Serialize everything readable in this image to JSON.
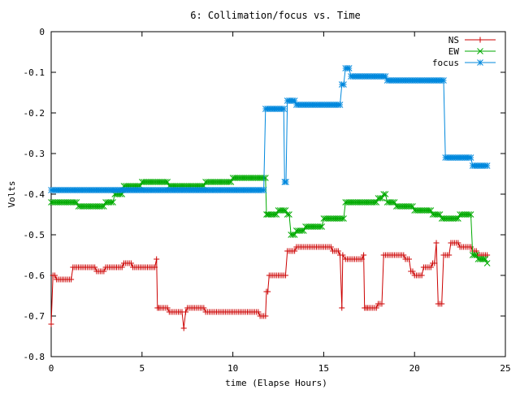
{
  "chart_data": {
    "type": "line",
    "title": "6: Collimation/focus vs. Time",
    "xlabel": "time (Elapse Hours)",
    "ylabel": "Volts",
    "xlim": [
      0,
      25
    ],
    "ylim": [
      -0.8,
      0
    ],
    "xticks": [
      0,
      5,
      10,
      15,
      20,
      25
    ],
    "xtick_labels": [
      "0",
      "5",
      "10",
      "15",
      "20",
      "25"
    ],
    "yticks": [
      0,
      -0.1,
      -0.2,
      -0.3,
      -0.4,
      -0.5,
      -0.6,
      -0.7,
      -0.8
    ],
    "ytick_labels": [
      "0",
      "-0.1",
      "-0.2",
      "-0.3",
      "-0.4",
      "-0.5",
      "-0.6",
      "-0.7",
      "-0.8"
    ],
    "grid": false,
    "legend_position": "top-right",
    "series": [
      {
        "name": "NS",
        "color": "#cc0000",
        "marker": "plus",
        "x": [
          0,
          0.1,
          0.3,
          0.6,
          1.1,
          1.2,
          1.5,
          2.0,
          2.5,
          3.0,
          3.5,
          4.0,
          4.5,
          5.0,
          5.5,
          5.8,
          5.85,
          6.0,
          6.5,
          7.0,
          7.3,
          7.4,
          7.5,
          8.0,
          8.5,
          9.0,
          10.0,
          11.0,
          11.5,
          11.8,
          11.85,
          12.0,
          12.5,
          12.8,
          13.0,
          13.5,
          14.0,
          14.5,
          15.0,
          15.5,
          15.9,
          16.0,
          16.05,
          16.2,
          16.5,
          17.0,
          17.2,
          17.25,
          17.5,
          18.0,
          18.2,
          18.3,
          18.5,
          19.0,
          19.5,
          19.8,
          20.0,
          20.5,
          21.0,
          21.2,
          21.3,
          21.5,
          21.6,
          22.0,
          22.5,
          23.0,
          23.2,
          23.5,
          24.0
        ],
        "y": [
          -0.72,
          -0.6,
          -0.61,
          -0.61,
          -0.61,
          -0.58,
          -0.58,
          -0.58,
          -0.59,
          -0.58,
          -0.58,
          -0.57,
          -0.58,
          -0.58,
          -0.58,
          -0.56,
          -0.68,
          -0.68,
          -0.69,
          -0.69,
          -0.73,
          -0.69,
          -0.68,
          -0.68,
          -0.69,
          -0.69,
          -0.69,
          -0.69,
          -0.7,
          -0.7,
          -0.64,
          -0.6,
          -0.6,
          -0.6,
          -0.54,
          -0.53,
          -0.53,
          -0.53,
          -0.53,
          -0.54,
          -0.55,
          -0.68,
          -0.55,
          -0.56,
          -0.56,
          -0.56,
          -0.55,
          -0.68,
          -0.68,
          -0.67,
          -0.67,
          -0.55,
          -0.55,
          -0.55,
          -0.56,
          -0.59,
          -0.6,
          -0.58,
          -0.57,
          -0.52,
          -0.67,
          -0.67,
          -0.55,
          -0.52,
          -0.53,
          -0.53,
          -0.54,
          -0.55,
          -0.55
        ]
      },
      {
        "name": "EW",
        "color": "#00aa00",
        "marker": "cross",
        "x": [
          0,
          0.5,
          1.0,
          1.5,
          2.0,
          2.5,
          3.0,
          3.5,
          4.0,
          4.5,
          5.0,
          5.5,
          6.0,
          6.5,
          7.0,
          7.5,
          8.0,
          8.5,
          9.0,
          9.5,
          10.0,
          10.5,
          11.0,
          11.5,
          11.8,
          11.85,
          12.0,
          12.5,
          13.0,
          13.2,
          13.5,
          14.0,
          14.5,
          15.0,
          15.5,
          16.0,
          16.2,
          16.5,
          17.0,
          17.5,
          18.0,
          18.3,
          18.5,
          19.0,
          19.5,
          20.0,
          20.5,
          21.0,
          21.5,
          22.0,
          22.5,
          23.0,
          23.2,
          23.5,
          24.0
        ],
        "y": [
          -0.42,
          -0.42,
          -0.42,
          -0.43,
          -0.43,
          -0.43,
          -0.42,
          -0.4,
          -0.38,
          -0.38,
          -0.37,
          -0.37,
          -0.37,
          -0.38,
          -0.38,
          -0.38,
          -0.38,
          -0.37,
          -0.37,
          -0.37,
          -0.36,
          -0.36,
          -0.36,
          -0.36,
          -0.36,
          -0.45,
          -0.45,
          -0.44,
          -0.45,
          -0.5,
          -0.49,
          -0.48,
          -0.48,
          -0.46,
          -0.46,
          -0.46,
          -0.42,
          -0.42,
          -0.42,
          -0.42,
          -0.41,
          -0.4,
          -0.42,
          -0.43,
          -0.43,
          -0.44,
          -0.44,
          -0.45,
          -0.46,
          -0.46,
          -0.45,
          -0.45,
          -0.55,
          -0.56,
          -0.57
        ]
      },
      {
        "name": "focus",
        "color": "#0088dd",
        "marker": "star",
        "x": [
          0,
          1.0,
          2.0,
          3.0,
          4.0,
          5.0,
          6.0,
          7.0,
          8.0,
          9.0,
          10.0,
          11.0,
          11.7,
          11.8,
          12.0,
          12.5,
          12.8,
          12.85,
          13.0,
          13.5,
          14.0,
          14.5,
          15.0,
          15.5,
          15.9,
          16.0,
          16.2,
          16.5,
          17.0,
          17.5,
          18.0,
          18.5,
          19.0,
          19.5,
          20.0,
          20.5,
          21.0,
          21.5,
          21.6,
          21.7,
          22.0,
          22.5,
          23.0,
          23.2,
          23.5,
          24.0
        ],
        "y": [
          -0.39,
          -0.39,
          -0.39,
          -0.39,
          -0.39,
          -0.39,
          -0.39,
          -0.39,
          -0.39,
          -0.39,
          -0.39,
          -0.39,
          -0.39,
          -0.19,
          -0.19,
          -0.19,
          -0.19,
          -0.37,
          -0.17,
          -0.18,
          -0.18,
          -0.18,
          -0.18,
          -0.18,
          -0.18,
          -0.13,
          -0.09,
          -0.11,
          -0.11,
          -0.11,
          -0.11,
          -0.12,
          -0.12,
          -0.12,
          -0.12,
          -0.12,
          -0.12,
          -0.12,
          -0.12,
          -0.31,
          -0.31,
          -0.31,
          -0.31,
          -0.33,
          -0.33,
          -0.33
        ]
      }
    ]
  }
}
